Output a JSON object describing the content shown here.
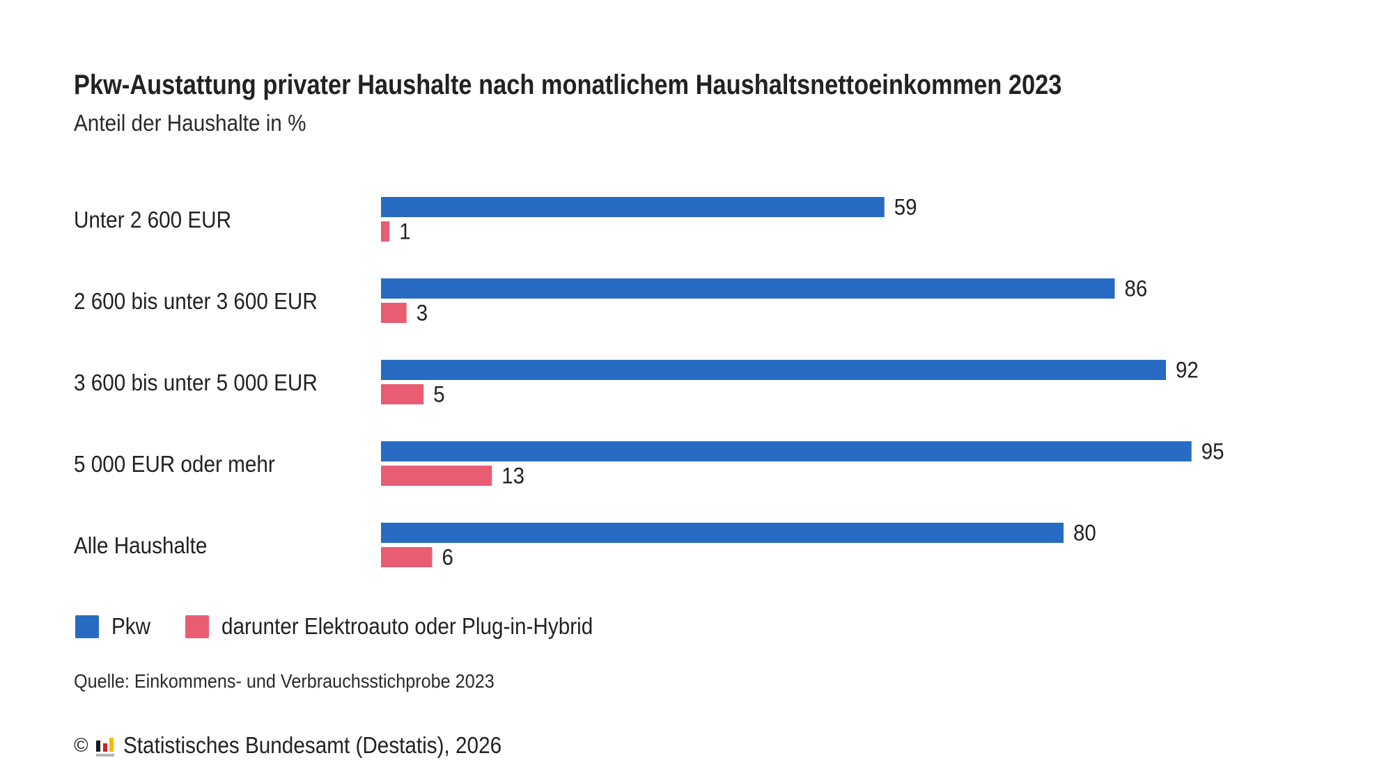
{
  "header": {
    "title": "Pkw-Austattung privater Haushalte nach monatlichem Haushaltsnettoeinkommen 2023",
    "subtitle": "Anteil der Haushalte in %"
  },
  "chart_data": {
    "type": "bar",
    "orientation": "horizontal",
    "title": "Pkw-Austattung privater Haushalte nach monatlichem Haushaltsnettoeinkommen 2023",
    "subtitle": "Anteil der Haushalte in %",
    "xlabel": "",
    "ylabel": "",
    "xlim": [
      0,
      100
    ],
    "grid": false,
    "legend_position": "bottom-left",
    "categories": [
      "Unter 2 600 EUR",
      "2 600 bis unter 3 600 EUR",
      "3 600 bis unter 5 000 EUR",
      "5 000 EUR oder mehr",
      "Alle Haushalte"
    ],
    "series": [
      {
        "name": "Pkw",
        "color": "#276cc2",
        "values": [
          59,
          86,
          92,
          95,
          80
        ]
      },
      {
        "name": "darunter Elektroauto oder Plug-in-Hybrid",
        "color": "#e85d72",
        "values": [
          1,
          3,
          5,
          13,
          6
        ]
      }
    ]
  },
  "legend": {
    "items": [
      {
        "label": "Pkw",
        "color": "#276cc2"
      },
      {
        "label": "darunter Elektroauto oder Plug-in-Hybrid",
        "color": "#e85d72"
      }
    ]
  },
  "footer": {
    "source": "Quelle: Einkommens- und Verbrauchsstichprobe 2023",
    "copyright_symbol": "©",
    "copyright_text": "Statistisches Bundesamt (Destatis), 2026",
    "logo_icon": "destatis-logo-icon",
    "logo_colors": [
      "#1a1a1a",
      "#d0202e",
      "#f5b800",
      "#b5b5b5"
    ]
  }
}
